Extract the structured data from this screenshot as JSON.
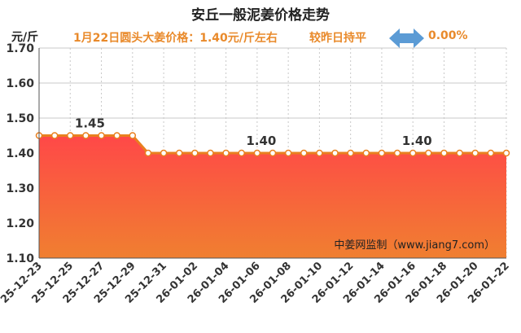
{
  "header": {
    "title": "安丘一般泥姜价格走势",
    "price_text": "1月22日圆头大姜价格：1.40元/斤左右",
    "compare_text": "较昨日持平",
    "change_text": "0.00%",
    "unit": "元/斤"
  },
  "watermark": "中姜网监制（www.jiang7.com）",
  "colors": {
    "line": "#e9801f",
    "area_top": "#ff4848",
    "area_bottom": "#f07f30",
    "subtitle": "#e98a2b",
    "arrow": "#5b9bd5"
  },
  "chart_data": {
    "type": "area",
    "title": "安丘一般泥姜价格走势",
    "ylabel": "元/斤",
    "ylim": [
      1.1,
      1.7
    ],
    "yticks": [
      "1.10",
      "1.20",
      "1.30",
      "1.40",
      "1.50",
      "1.60",
      "1.70"
    ],
    "x": [
      "25-12-23",
      "25-12-24",
      "25-12-25",
      "25-12-26",
      "25-12-27",
      "25-12-28",
      "25-12-29",
      "25-12-30",
      "25-12-31",
      "26-01-01",
      "26-01-02",
      "26-01-03",
      "26-01-04",
      "26-01-05",
      "26-01-06",
      "26-01-07",
      "26-01-08",
      "26-01-09",
      "26-01-10",
      "26-01-11",
      "26-01-12",
      "26-01-13",
      "26-01-14",
      "26-01-15",
      "26-01-16",
      "26-01-17",
      "26-01-18",
      "26-01-19",
      "26-01-20",
      "26-01-21",
      "26-01-22"
    ],
    "xtick_labels": [
      "25-12-23",
      "25-12-25",
      "25-12-27",
      "25-12-29",
      "25-12-31",
      "26-01-02",
      "26-01-04",
      "26-01-06",
      "26-01-08",
      "26-01-10",
      "26-01-12",
      "26-01-14",
      "26-01-16",
      "26-01-18",
      "26-01-20",
      "26-01-22"
    ],
    "series": [
      {
        "values": [
          1.45,
          1.45,
          1.45,
          1.45,
          1.45,
          1.45,
          1.45,
          1.4,
          1.4,
          1.4,
          1.4,
          1.4,
          1.4,
          1.4,
          1.4,
          1.4,
          1.4,
          1.4,
          1.4,
          1.4,
          1.4,
          1.4,
          1.4,
          1.4,
          1.4,
          1.4,
          1.4,
          1.4,
          1.4,
          1.4,
          1.4
        ]
      }
    ],
    "annotations": [
      {
        "x": "25-12-26",
        "text": "1.45"
      },
      {
        "x": "26-01-06",
        "text": "1.40"
      },
      {
        "x": "26-01-16",
        "text": "1.40"
      }
    ],
    "grid": true
  }
}
